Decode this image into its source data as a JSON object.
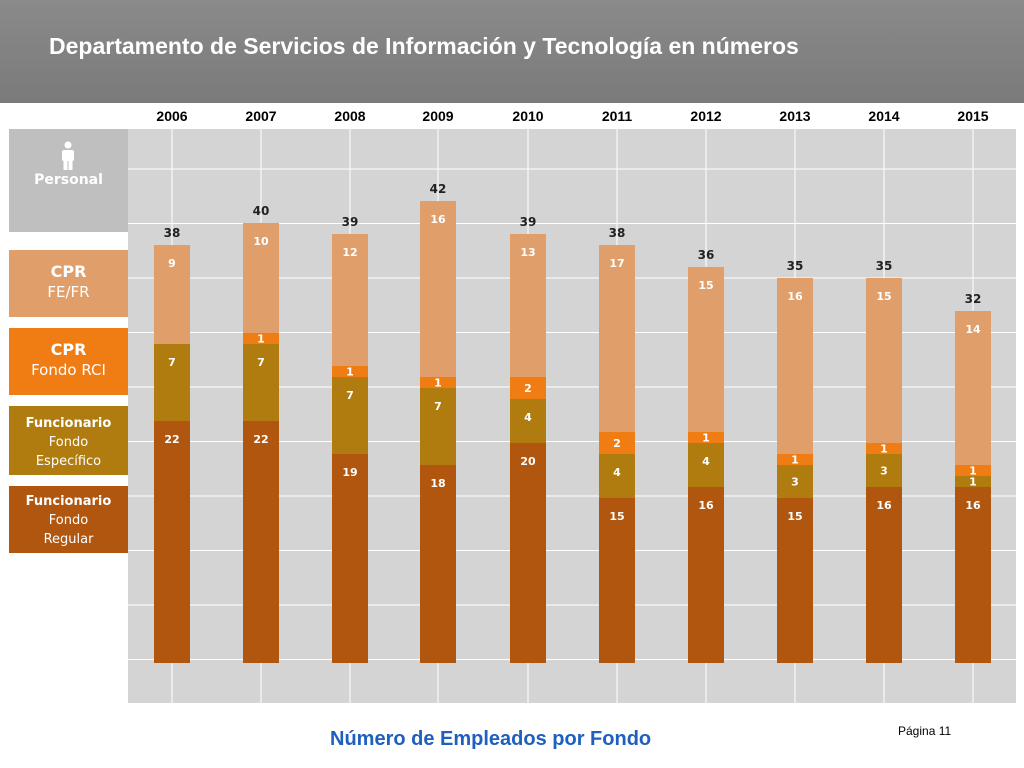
{
  "header": {
    "title": "Departamento de Servicios de Información y Tecnología en números"
  },
  "sidebar": {
    "personal": {
      "label": "Personal",
      "icon": "person-icon"
    },
    "cpr_fe": {
      "line1": "CPR",
      "line2": "FE/FR"
    },
    "cpr_rci": {
      "line1": "CPR",
      "line2": "Fondo RCI"
    },
    "func_esp": {
      "line1": "Funcionario",
      "line2": "Fondo",
      "line3": "Específico"
    },
    "func_reg": {
      "line1": "Funcionario",
      "line2": "Fondo",
      "line3": "Regular"
    }
  },
  "colors": {
    "fondo_regular": "#b0560e",
    "fondo_especifico": "#b07c10",
    "fondo_rci": "#f07c14",
    "fe_fr": "#e09f6a",
    "plot_bg": "#d4d4d4",
    "grid": "#ffffff"
  },
  "chart_data": {
    "type": "bar",
    "stacked": true,
    "title": "Número de Empleados por Fondo",
    "categories": [
      "2006",
      "2007",
      "2008",
      "2009",
      "2010",
      "2011",
      "2012",
      "2013",
      "2014",
      "2015"
    ],
    "series": [
      {
        "name": "Funcionario Fondo Regular",
        "values": [
          22,
          22,
          19,
          18,
          20,
          15,
          16,
          15,
          16,
          16
        ],
        "labels": [
          "22",
          "22",
          "19",
          "18",
          "20",
          "15",
          "16",
          "15",
          "16",
          "16"
        ]
      },
      {
        "name": "Funcionario Fondo Específico",
        "values": [
          7,
          7,
          7,
          7,
          4,
          4,
          4,
          3,
          3,
          1
        ],
        "labels": [
          "7",
          "7",
          "7",
          "7",
          "4",
          "4",
          "4",
          "3",
          "3",
          "1"
        ]
      },
      {
        "name": "CPR Fondo RCI",
        "values": [
          0,
          1,
          1,
          1,
          2,
          2,
          1,
          1,
          1,
          1
        ],
        "labels": [
          "",
          "1",
          "1",
          "1",
          "2",
          "2",
          "1",
          "1",
          "1",
          "1"
        ]
      },
      {
        "name": "CPR FE/FR",
        "values": [
          9,
          10,
          12,
          16,
          13,
          17,
          15,
          16,
          15,
          14
        ],
        "labels": [
          "9",
          "10",
          "12",
          "16",
          "13",
          "17",
          "15",
          "16",
          "15",
          "14"
        ]
      }
    ],
    "totals": [
      "38",
      "40",
      "39",
      "42",
      "39",
      "38",
      "36",
      "35",
      "35",
      "32"
    ],
    "ylim": [
      0,
      50
    ],
    "grid": true,
    "xlabel": "",
    "ylabel": ""
  },
  "footer": {
    "page": "Página 11"
  }
}
